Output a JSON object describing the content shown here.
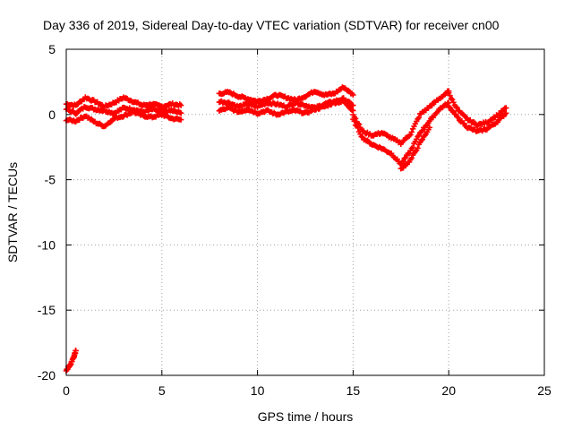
{
  "chart_data": {
    "type": "scatter",
    "title": "Day 336 of 2019, Sidereal Day-to-day VTEC variation (SDTVAR) for receiver cn00",
    "xlabel": "GPS time / hours",
    "ylabel": "SDTVAR / TECUs",
    "xlim": [
      0,
      25
    ],
    "ylim": [
      -20,
      5
    ],
    "xticks": [
      0,
      5,
      10,
      15,
      20,
      25
    ],
    "yticks": [
      5,
      0,
      -5,
      -10,
      -15,
      -20
    ],
    "grid": true,
    "marker": "plus",
    "color": "#ff0000",
    "series": [
      {
        "name": "SDTVAR",
        "bands": [
          {
            "x": [
              0.0,
              0.5,
              1.0,
              1.5,
              2.0,
              2.5,
              3.0,
              3.5,
              4.0,
              4.5,
              5.0,
              5.5,
              6.0
            ],
            "y": [
              0.8,
              0.7,
              1.3,
              1.0,
              0.6,
              0.9,
              1.3,
              1.0,
              0.7,
              0.8,
              0.6,
              0.8,
              0.7
            ]
          },
          {
            "x": [
              0.0,
              0.5,
              1.0,
              1.5,
              2.0,
              2.5,
              3.0,
              3.5,
              4.0,
              4.5,
              5.0,
              5.5,
              6.0
            ],
            "y": [
              0.4,
              0.1,
              0.6,
              0.4,
              0.3,
              0.1,
              0.5,
              0.4,
              0.2,
              0.4,
              0.2,
              0.3,
              0.1
            ]
          },
          {
            "x": [
              0.0,
              0.5,
              1.0,
              1.5,
              2.0,
              2.5,
              3.0,
              3.5,
              4.0,
              4.5,
              5.0,
              5.5,
              6.0
            ],
            "y": [
              -0.4,
              -0.5,
              -0.1,
              -0.6,
              -0.9,
              -0.3,
              -0.1,
              0.2,
              -0.1,
              -0.2,
              0.0,
              -0.3,
              -0.4
            ]
          },
          {
            "x": [
              8.0,
              8.5,
              9.0,
              9.5,
              10.0,
              10.5,
              11.0,
              11.5,
              12.0,
              12.5,
              13.0,
              13.5,
              14.0,
              14.5,
              15.0
            ],
            "y": [
              1.6,
              1.7,
              1.4,
              1.2,
              1.0,
              1.2,
              1.5,
              1.3,
              1.1,
              1.4,
              1.8,
              1.5,
              1.6,
              2.1,
              1.5
            ]
          },
          {
            "x": [
              8.0,
              8.5,
              9.0,
              9.5,
              10.0,
              10.5,
              11.0,
              11.5,
              12.0,
              12.5,
              13.0,
              13.5,
              14.0,
              14.5,
              15.0
            ],
            "y": [
              1.0,
              0.9,
              0.6,
              0.8,
              0.6,
              0.9,
              0.8,
              0.6,
              0.9,
              0.7,
              0.5,
              0.8,
              1.0,
              1.2,
              0.7
            ]
          },
          {
            "x": [
              8.0,
              8.5,
              9.0,
              9.5,
              10.0,
              10.5,
              11.0,
              11.5,
              12.0,
              12.5,
              13.0,
              13.5,
              14.0,
              14.5,
              15.0
            ],
            "y": [
              0.3,
              0.5,
              0.2,
              0.4,
              0.1,
              0.3,
              0.0,
              0.2,
              0.3,
              0.1,
              0.4,
              0.6,
              0.9,
              1.0,
              0.3
            ]
          },
          {
            "x": [
              15.0,
              15.5,
              16.0,
              16.5,
              17.0,
              17.5,
              18.0,
              18.5,
              19.0,
              19.5,
              20.0
            ],
            "y": [
              0.0,
              -1.3,
              -1.6,
              -1.4,
              -1.8,
              -2.2,
              -1.5,
              0.0,
              0.6,
              1.2,
              1.8
            ]
          },
          {
            "x": [
              15.0,
              15.5,
              16.0,
              16.5,
              17.0,
              17.5,
              18.0,
              18.5,
              19.0,
              19.5,
              20.0
            ],
            "y": [
              -0.4,
              -1.8,
              -2.3,
              -2.6,
              -3.0,
              -3.8,
              -2.8,
              -1.4,
              -0.5,
              0.4,
              0.9
            ]
          },
          {
            "x": [
              17.5,
              18.0,
              18.5,
              19.0
            ],
            "y": [
              -4.2,
              -3.5,
              -2.2,
              -1.0
            ]
          },
          {
            "x": [
              20.0,
              20.5,
              21.0,
              21.5,
              22.0,
              22.5,
              23.0
            ],
            "y": [
              1.6,
              0.3,
              -0.4,
              -0.8,
              -0.6,
              -0.1,
              0.5
            ]
          },
          {
            "x": [
              20.0,
              20.5,
              21.0,
              21.5,
              22.0,
              22.5,
              23.0
            ],
            "y": [
              0.6,
              -0.3,
              -1.0,
              -1.3,
              -1.1,
              -0.6,
              0.1
            ]
          },
          {
            "x": [
              0.0,
              0.2,
              0.4,
              0.5
            ],
            "y": [
              -19.6,
              -19.2,
              -18.6,
              -18.1
            ]
          }
        ]
      }
    ]
  }
}
